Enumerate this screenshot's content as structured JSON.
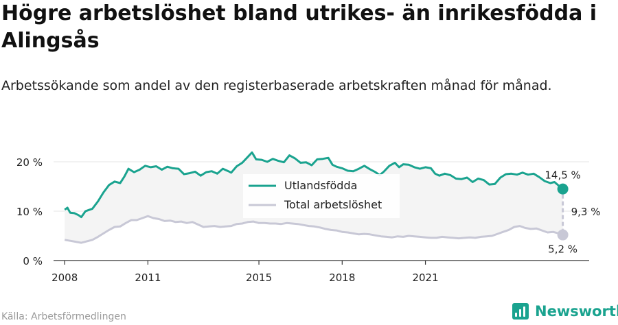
{
  "chart_data": {
    "type": "line",
    "title": "Högre arbetslöshet bland utrikes- än inrikesfödda i Alingsås",
    "subtitle": "Arbetssökande som andel av den registerbaserade arbetskraften månad för månad.",
    "ylim": [
      0,
      20
    ],
    "yticks": [
      0,
      10,
      20
    ],
    "ytick_labels": [
      "0 %",
      "10 %",
      "20 %"
    ],
    "xticks": [
      2008,
      2011,
      2015,
      2018,
      2021
    ],
    "xtick_labels": [
      "2008",
      "2011",
      "2015",
      "2018",
      "2021"
    ],
    "legend_placement": "center-right",
    "series": [
      {
        "name": "Utlandsfödda",
        "color": "#1aa38f",
        "end_label": "14,5 %",
        "points": [
          [
            2008.0,
            10.3
          ],
          [
            2008.1,
            10.7
          ],
          [
            2008.2,
            9.7
          ],
          [
            2008.35,
            9.6
          ],
          [
            2008.5,
            9.2
          ],
          [
            2008.6,
            8.8
          ],
          [
            2008.75,
            10.0
          ],
          [
            2009.0,
            10.5
          ],
          [
            2009.2,
            12.0
          ],
          [
            2009.4,
            13.8
          ],
          [
            2009.6,
            15.3
          ],
          [
            2009.8,
            16.0
          ],
          [
            2010.0,
            15.7
          ],
          [
            2010.15,
            17.0
          ],
          [
            2010.3,
            18.6
          ],
          [
            2010.5,
            17.9
          ],
          [
            2010.7,
            18.4
          ],
          [
            2010.9,
            19.2
          ],
          [
            2011.1,
            18.9
          ],
          [
            2011.3,
            19.1
          ],
          [
            2011.5,
            18.4
          ],
          [
            2011.7,
            19.0
          ],
          [
            2011.9,
            18.7
          ],
          [
            2012.1,
            18.6
          ],
          [
            2012.3,
            17.5
          ],
          [
            2012.5,
            17.7
          ],
          [
            2012.7,
            18.0
          ],
          [
            2012.9,
            17.2
          ],
          [
            2013.1,
            17.9
          ],
          [
            2013.3,
            18.1
          ],
          [
            2013.5,
            17.6
          ],
          [
            2013.7,
            18.6
          ],
          [
            2013.9,
            18.1
          ],
          [
            2014.0,
            17.8
          ],
          [
            2014.2,
            19.1
          ],
          [
            2014.4,
            19.8
          ],
          [
            2014.6,
            21.0
          ],
          [
            2014.75,
            21.9
          ],
          [
            2014.9,
            20.5
          ],
          [
            2015.1,
            20.4
          ],
          [
            2015.3,
            20.0
          ],
          [
            2015.5,
            20.6
          ],
          [
            2015.7,
            20.2
          ],
          [
            2015.9,
            19.9
          ],
          [
            2016.1,
            21.3
          ],
          [
            2016.3,
            20.7
          ],
          [
            2016.5,
            19.8
          ],
          [
            2016.7,
            19.9
          ],
          [
            2016.9,
            19.3
          ],
          [
            2017.1,
            20.5
          ],
          [
            2017.3,
            20.6
          ],
          [
            2017.5,
            20.8
          ],
          [
            2017.65,
            19.4
          ],
          [
            2017.8,
            19.0
          ],
          [
            2018.0,
            18.7
          ],
          [
            2018.2,
            18.2
          ],
          [
            2018.4,
            18.1
          ],
          [
            2018.6,
            18.6
          ],
          [
            2018.8,
            19.2
          ],
          [
            2019.0,
            18.5
          ],
          [
            2019.2,
            17.9
          ],
          [
            2019.35,
            17.3
          ],
          [
            2019.5,
            18.0
          ],
          [
            2019.7,
            19.2
          ],
          [
            2019.9,
            19.8
          ],
          [
            2020.05,
            18.9
          ],
          [
            2020.2,
            19.5
          ],
          [
            2020.4,
            19.4
          ],
          [
            2020.6,
            18.9
          ],
          [
            2020.8,
            18.6
          ],
          [
            2021.0,
            18.9
          ],
          [
            2021.2,
            18.7
          ],
          [
            2021.35,
            17.6
          ],
          [
            2021.5,
            17.2
          ],
          [
            2021.7,
            17.6
          ],
          [
            2021.9,
            17.3
          ],
          [
            2022.1,
            16.6
          ],
          [
            2022.3,
            16.5
          ],
          [
            2022.5,
            16.8
          ],
          [
            2022.7,
            15.9
          ],
          [
            2022.9,
            16.6
          ],
          [
            2023.1,
            16.3
          ],
          [
            2023.3,
            15.4
          ],
          [
            2023.5,
            15.5
          ],
          [
            2023.7,
            16.8
          ],
          [
            2023.9,
            17.5
          ],
          [
            2024.1,
            17.6
          ],
          [
            2024.3,
            17.4
          ],
          [
            2024.5,
            17.8
          ],
          [
            2024.7,
            17.4
          ],
          [
            2024.9,
            17.6
          ],
          [
            2025.1,
            16.9
          ],
          [
            2025.3,
            16.1
          ],
          [
            2025.5,
            15.7
          ],
          [
            2025.65,
            15.9
          ],
          [
            2025.8,
            15.2
          ],
          [
            2025.95,
            14.5
          ]
        ]
      },
      {
        "name": "Total arbetslöshet",
        "color": "#c8c8d6",
        "end_label": "5,2 %",
        "points": [
          [
            2008.0,
            4.2
          ],
          [
            2008.2,
            4.0
          ],
          [
            2008.4,
            3.8
          ],
          [
            2008.6,
            3.6
          ],
          [
            2008.8,
            3.9
          ],
          [
            2009.0,
            4.2
          ],
          [
            2009.2,
            4.8
          ],
          [
            2009.4,
            5.5
          ],
          [
            2009.6,
            6.2
          ],
          [
            2009.8,
            6.8
          ],
          [
            2010.0,
            6.9
          ],
          [
            2010.2,
            7.6
          ],
          [
            2010.4,
            8.2
          ],
          [
            2010.6,
            8.2
          ],
          [
            2010.8,
            8.6
          ],
          [
            2011.0,
            9.0
          ],
          [
            2011.2,
            8.6
          ],
          [
            2011.4,
            8.4
          ],
          [
            2011.6,
            8.0
          ],
          [
            2011.8,
            8.1
          ],
          [
            2012.0,
            7.8
          ],
          [
            2012.2,
            7.9
          ],
          [
            2012.4,
            7.6
          ],
          [
            2012.6,
            7.8
          ],
          [
            2012.8,
            7.3
          ],
          [
            2013.0,
            6.8
          ],
          [
            2013.2,
            6.9
          ],
          [
            2013.4,
            7.0
          ],
          [
            2013.6,
            6.8
          ],
          [
            2013.8,
            6.9
          ],
          [
            2014.0,
            7.0
          ],
          [
            2014.2,
            7.4
          ],
          [
            2014.4,
            7.5
          ],
          [
            2014.6,
            7.8
          ],
          [
            2014.8,
            7.9
          ],
          [
            2015.0,
            7.6
          ],
          [
            2015.2,
            7.6
          ],
          [
            2015.4,
            7.5
          ],
          [
            2015.6,
            7.5
          ],
          [
            2015.8,
            7.4
          ],
          [
            2016.0,
            7.6
          ],
          [
            2016.2,
            7.5
          ],
          [
            2016.4,
            7.4
          ],
          [
            2016.6,
            7.2
          ],
          [
            2016.8,
            7.0
          ],
          [
            2017.0,
            6.9
          ],
          [
            2017.2,
            6.7
          ],
          [
            2017.4,
            6.4
          ],
          [
            2017.6,
            6.2
          ],
          [
            2017.8,
            6.1
          ],
          [
            2018.0,
            5.8
          ],
          [
            2018.2,
            5.7
          ],
          [
            2018.4,
            5.5
          ],
          [
            2018.6,
            5.3
          ],
          [
            2018.8,
            5.4
          ],
          [
            2019.0,
            5.3
          ],
          [
            2019.2,
            5.1
          ],
          [
            2019.4,
            4.9
          ],
          [
            2019.6,
            4.8
          ],
          [
            2019.8,
            4.7
          ],
          [
            2020.0,
            4.9
          ],
          [
            2020.2,
            4.8
          ],
          [
            2020.4,
            5.0
          ],
          [
            2020.6,
            4.9
          ],
          [
            2020.8,
            4.8
          ],
          [
            2021.0,
            4.7
          ],
          [
            2021.2,
            4.6
          ],
          [
            2021.4,
            4.6
          ],
          [
            2021.6,
            4.8
          ],
          [
            2021.8,
            4.7
          ],
          [
            2022.0,
            4.6
          ],
          [
            2022.2,
            4.5
          ],
          [
            2022.4,
            4.6
          ],
          [
            2022.6,
            4.7
          ],
          [
            2022.8,
            4.6
          ],
          [
            2023.0,
            4.8
          ],
          [
            2023.2,
            4.9
          ],
          [
            2023.4,
            5.0
          ],
          [
            2023.6,
            5.4
          ],
          [
            2023.8,
            5.8
          ],
          [
            2024.0,
            6.2
          ],
          [
            2024.2,
            6.8
          ],
          [
            2024.4,
            7.0
          ],
          [
            2024.6,
            6.6
          ],
          [
            2024.8,
            6.4
          ],
          [
            2025.0,
            6.5
          ],
          [
            2025.2,
            6.1
          ],
          [
            2025.4,
            5.7
          ],
          [
            2025.6,
            5.8
          ],
          [
            2025.8,
            5.5
          ],
          [
            2025.95,
            5.2
          ]
        ]
      }
    ],
    "gap_label": "9,3 %",
    "source": "Källa: Arbetsförmedlingen",
    "brand": "Newsworthy"
  }
}
